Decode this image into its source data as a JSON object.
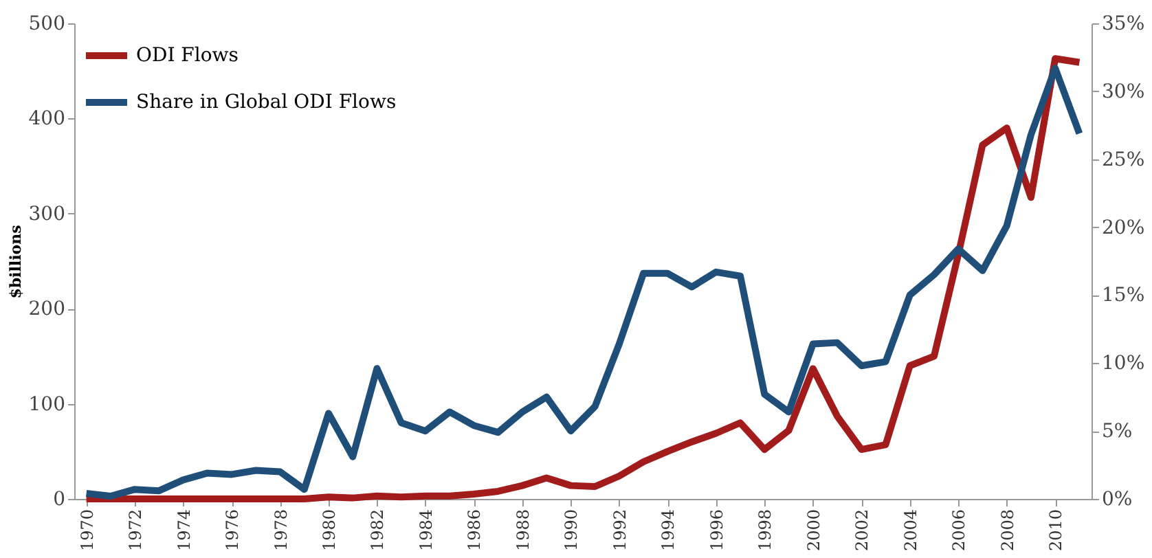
{
  "chart_data": {
    "type": "line",
    "ylabel": "$billions",
    "legend": "top left",
    "grid": false,
    "line_style": "solid",
    "marker": "none",
    "x": [
      1970,
      1971,
      1972,
      1973,
      1974,
      1975,
      1976,
      1977,
      1978,
      1979,
      1980,
      1981,
      1982,
      1983,
      1984,
      1985,
      1986,
      1987,
      1988,
      1989,
      1990,
      1991,
      1992,
      1993,
      1994,
      1995,
      1996,
      1997,
      1998,
      1999,
      2000,
      2001,
      2002,
      2003,
      2004,
      2005,
      2006,
      2007,
      2008,
      2009,
      2010,
      2011
    ],
    "xlim": [
      1969.5,
      2011.5
    ],
    "xticks": [
      1970,
      1972,
      1974,
      1976,
      1978,
      1980,
      1982,
      1984,
      1986,
      1988,
      1990,
      1992,
      1994,
      1996,
      1998,
      2000,
      2002,
      2004,
      2006,
      2008,
      2010
    ],
    "ylim": [
      0,
      500
    ],
    "yticks": [
      0,
      100,
      200,
      300,
      400,
      500
    ],
    "y2lim": [
      0,
      35
    ],
    "y2ticks": [
      {
        "value": 0,
        "label": "0%"
      },
      {
        "value": 5,
        "label": "5%"
      },
      {
        "value": 10,
        "label": "10%"
      },
      {
        "value": 15,
        "label": "15%"
      },
      {
        "value": 20,
        "label": "20%"
      },
      {
        "value": 25,
        "label": "25%"
      },
      {
        "value": 30,
        "label": "30%"
      },
      {
        "value": 35,
        "label": "35%"
      }
    ],
    "series": [
      {
        "name": "ODI Flows",
        "color": "#a31c1c",
        "values": [
          0,
          0,
          0,
          0,
          0,
          0,
          0,
          0,
          0,
          0,
          2,
          1,
          3,
          2,
          3,
          3,
          5,
          8,
          14,
          22,
          14,
          13,
          24,
          39,
          50,
          60,
          69,
          80,
          52,
          72,
          137,
          87,
          52,
          57,
          140,
          150,
          257,
          372,
          390,
          317,
          463,
          459
        ]
      },
      {
        "name": "Share in Global ODI Flows",
        "color": "#1f4e79",
        "axis": "y2",
        "values": [
          0.4,
          0.2,
          0.7,
          0.6,
          1.4,
          1.9,
          1.8,
          2.1,
          2.0,
          0.7,
          6.3,
          3.1,
          9.6,
          5.6,
          5.0,
          6.4,
          5.4,
          4.9,
          6.4,
          7.5,
          5.0,
          6.8,
          11.4,
          16.6,
          16.6,
          15.6,
          16.7,
          16.4,
          7.7,
          6.4,
          11.4,
          11.5,
          9.8,
          10.1,
          15.0,
          16.5,
          18.4,
          16.8,
          20.1,
          26.8,
          31.7,
          26.9
        ]
      }
    ]
  }
}
